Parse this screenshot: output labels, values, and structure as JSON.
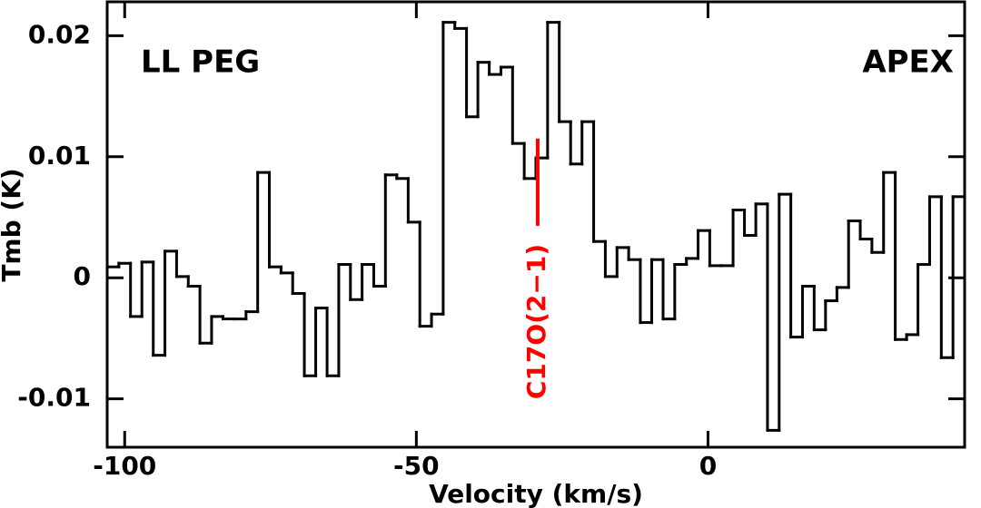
{
  "chart_data": {
    "type": "step",
    "title_left": "LL PEG",
    "title_right": "APEX",
    "title_color": "#0000ff",
    "x_label": "Velocity (km/s)",
    "y_label": "Tmb (K)",
    "xlim": [
      -103,
      44
    ],
    "ylim": [
      -0.014,
      0.0228
    ],
    "xticks": [
      -100,
      -50,
      0
    ],
    "yticks": [
      0.02,
      0.01,
      0,
      -0.01
    ],
    "series": [
      {
        "color": "#000000",
        "x": [
          -102.0,
          -100.0,
          -98.0,
          -96.1,
          -94.1,
          -92.1,
          -90.1,
          -88.1,
          -86.1,
          -84.1,
          -82.2,
          -80.2,
          -78.2,
          -76.2,
          -74.2,
          -72.2,
          -70.2,
          -68.2,
          -66.3,
          -64.3,
          -62.3,
          -60.3,
          -58.3,
          -56.3,
          -54.3,
          -52.4,
          -50.4,
          -48.4,
          -46.4,
          -44.4,
          -42.4,
          -40.4,
          -38.5,
          -36.5,
          -34.5,
          -32.5,
          -30.5,
          -28.5,
          -26.5,
          -24.5,
          -22.6,
          -20.6,
          -18.6,
          -16.6,
          -14.6,
          -12.6,
          -10.6,
          -8.7,
          -6.7,
          -4.7,
          -2.7,
          -0.7,
          1.3,
          3.3,
          5.3,
          7.2,
          9.2,
          11.2,
          13.2,
          15.2,
          17.2,
          19.2,
          21.1,
          23.1,
          25.1,
          27.1,
          29.1,
          31.1,
          33.1,
          35.0,
          37.0,
          39.0,
          41.0,
          43.0
        ],
        "values": [
          0.0009,
          0.0012,
          -0.0032,
          0.0013,
          -0.0064,
          0.0022,
          0.0001,
          -0.0007,
          -0.0054,
          -0.0032,
          -0.0034,
          -0.0034,
          -0.0028,
          0.0087,
          0.0009,
          0.0004,
          -0.0013,
          -0.0081,
          -0.0025,
          -0.0081,
          0.0011,
          -0.0018,
          0.0011,
          -0.0007,
          0.0085,
          0.0082,
          0.0046,
          -0.004,
          -0.003,
          0.0211,
          0.0206,
          0.0133,
          0.0178,
          0.0168,
          0.0174,
          0.0111,
          0.0082,
          0.0099,
          0.0211,
          0.0129,
          0.0094,
          0.0129,
          0.003,
          0.0001,
          0.0025,
          0.0015,
          -0.0037,
          0.0015,
          -0.0034,
          0.0011,
          0.0016,
          0.0039,
          0.001,
          0.001,
          0.0056,
          0.0035,
          0.0061,
          -0.0126,
          0.0069,
          -0.0049,
          -0.0007,
          -0.0043,
          -0.0019,
          -0.0008,
          0.0047,
          0.0032,
          0.0021,
          0.0087,
          -0.0051,
          -0.0047,
          0.0011,
          0.0067,
          -0.0066,
          0.0067
        ]
      }
    ],
    "annotation": {
      "text": "C17O(2−1)",
      "x": -29.2,
      "y_top": 0.0115,
      "y_bottom": 0.0043,
      "color": "#ff0000"
    }
  }
}
